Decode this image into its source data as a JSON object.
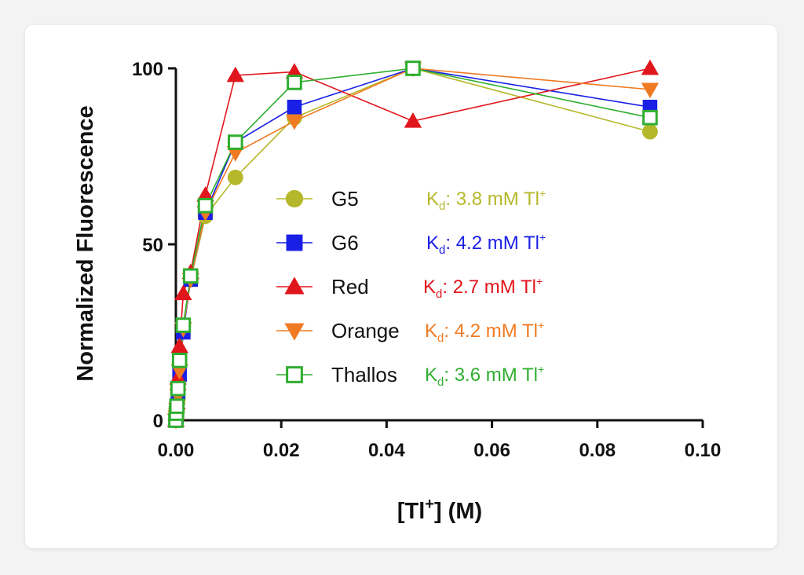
{
  "chart_data": {
    "type": "line",
    "ylabel": "Normalized Fluorescence",
    "xlabel": {
      "base": "[Tl",
      "sup": "+",
      "rest": "] (M)"
    },
    "xlim": [
      0,
      0.1
    ],
    "ylim": [
      0,
      100
    ],
    "xticks": [
      {
        "value": 0.0,
        "label": "0.00"
      },
      {
        "value": 0.02,
        "label": "0.02"
      },
      {
        "value": 0.04,
        "label": "0.04"
      },
      {
        "value": 0.06,
        "label": "0.06"
      },
      {
        "value": 0.08,
        "label": "0.08"
      },
      {
        "value": 0.1,
        "label": "0.10"
      }
    ],
    "yticks": [
      {
        "value": 0,
        "label": "0"
      },
      {
        "value": 50,
        "label": "50"
      },
      {
        "value": 100,
        "label": "100"
      }
    ],
    "series": [
      {
        "name": "G5",
        "color": "#b5b82a",
        "marker": "circle",
        "kd": {
          "k": "K",
          "sub": "d",
          "text": ": 3.8 mM Tl",
          "sup": "+"
        },
        "x": [
          0.0,
          0.0001,
          0.0002,
          0.0004,
          0.0007,
          0.0014,
          0.0028,
          0.0056,
          0.0113,
          0.0225,
          0.045,
          0.09
        ],
        "y": [
          0,
          1,
          3,
          6,
          16,
          27,
          40,
          58,
          69,
          86,
          100,
          82
        ]
      },
      {
        "name": "G6",
        "color": "#1a1fe6",
        "marker": "square",
        "kd": {
          "k": "K",
          "sub": "d",
          "text": ": 4.2 mM Tl",
          "sup": "+"
        },
        "x": [
          0.0,
          0.0001,
          0.0002,
          0.0004,
          0.0007,
          0.0014,
          0.0028,
          0.0056,
          0.0113,
          0.0225,
          0.045,
          0.09
        ],
        "y": [
          0,
          1,
          3,
          8,
          13,
          25,
          40,
          59,
          79,
          89,
          100,
          89
        ]
      },
      {
        "name": "Red",
        "color": "#e0161c",
        "marker": "triangle-up",
        "kd": {
          "k": "K",
          "sub": "d",
          "text": ": 2.7 mM Tl",
          "sup": "+"
        },
        "x": [
          0.0,
          0.0001,
          0.0002,
          0.0004,
          0.0007,
          0.0014,
          0.0028,
          0.0056,
          0.0113,
          0.0225,
          0.045,
          0.09
        ],
        "y": [
          0,
          2,
          5,
          12,
          21,
          36,
          42,
          64,
          98,
          99,
          85,
          100
        ]
      },
      {
        "name": "Orange",
        "color": "#f07a22",
        "marker": "triangle-down",
        "kd": {
          "k": "K",
          "sub": "d",
          "text": ": 4.2 mM Tl",
          "sup": "+"
        },
        "x": [
          0.0,
          0.0001,
          0.0002,
          0.0004,
          0.0007,
          0.0014,
          0.0028,
          0.0056,
          0.0113,
          0.0225,
          0.045,
          0.09
        ],
        "y": [
          0,
          1,
          3,
          7,
          14,
          26,
          40,
          59,
          76,
          85,
          100,
          94
        ]
      },
      {
        "name": "Thallos",
        "color": "#2fae2f",
        "marker": "open-square",
        "kd": {
          "k": "K",
          "sub": "d",
          "text": ": 3.6 mM Tl",
          "sup": "+"
        },
        "x": [
          0.0,
          0.0001,
          0.0002,
          0.0004,
          0.0007,
          0.0014,
          0.0028,
          0.0056,
          0.0113,
          0.0225,
          0.045,
          0.09
        ],
        "y": [
          0,
          2,
          4,
          9,
          17,
          27,
          41,
          61,
          79,
          96,
          100,
          86
        ]
      }
    ]
  }
}
